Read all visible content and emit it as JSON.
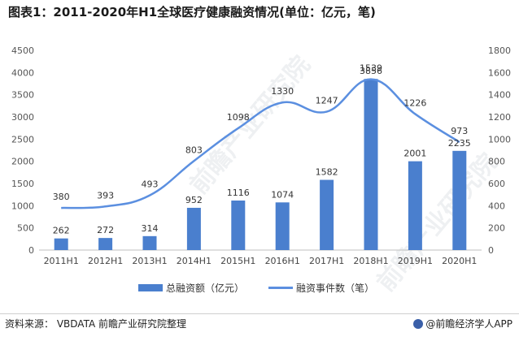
{
  "title": "图表1：2011-2020年H1全球医疗健康融资情况(单位：亿元，笔)",
  "source": "资料来源：  VBDATA 前瞻产业研究院整理",
  "footer": "@前瞻经济学人APP",
  "watermark": "前瞻产业研究院",
  "colors": {
    "bar": "#4a7fce",
    "line": "#5b8fe0"
  },
  "chart_data": {
    "type": "bar",
    "categories": [
      "2011H1",
      "2012H1",
      "2013H1",
      "2014H1",
      "2015H1",
      "2016H1",
      "2017H1",
      "2018H1",
      "2019H1",
      "2020H1"
    ],
    "series": [
      {
        "name": "总融资额（亿元）",
        "type": "bar",
        "axis": "left",
        "values": [
          262,
          272,
          314,
          952,
          1116,
          1074,
          1582,
          3856,
          2001,
          2235
        ]
      },
      {
        "name": "融资事件数（笔）",
        "type": "line",
        "axis": "right",
        "smooth": true,
        "values": [
          380,
          393,
          493,
          803,
          1098,
          1330,
          1247,
          1539,
          1226,
          973
        ]
      }
    ],
    "y_left": {
      "min": 0,
      "max": 4500,
      "ticks": [
        0,
        500,
        1000,
        1500,
        2000,
        2500,
        3000,
        3500,
        4000,
        4500
      ]
    },
    "y_right": {
      "min": 0,
      "max": 1800,
      "ticks": [
        0,
        200,
        400,
        600,
        800,
        1000,
        1200,
        1400,
        1600,
        1800
      ]
    },
    "grid": false,
    "legend_position": "bottom"
  }
}
